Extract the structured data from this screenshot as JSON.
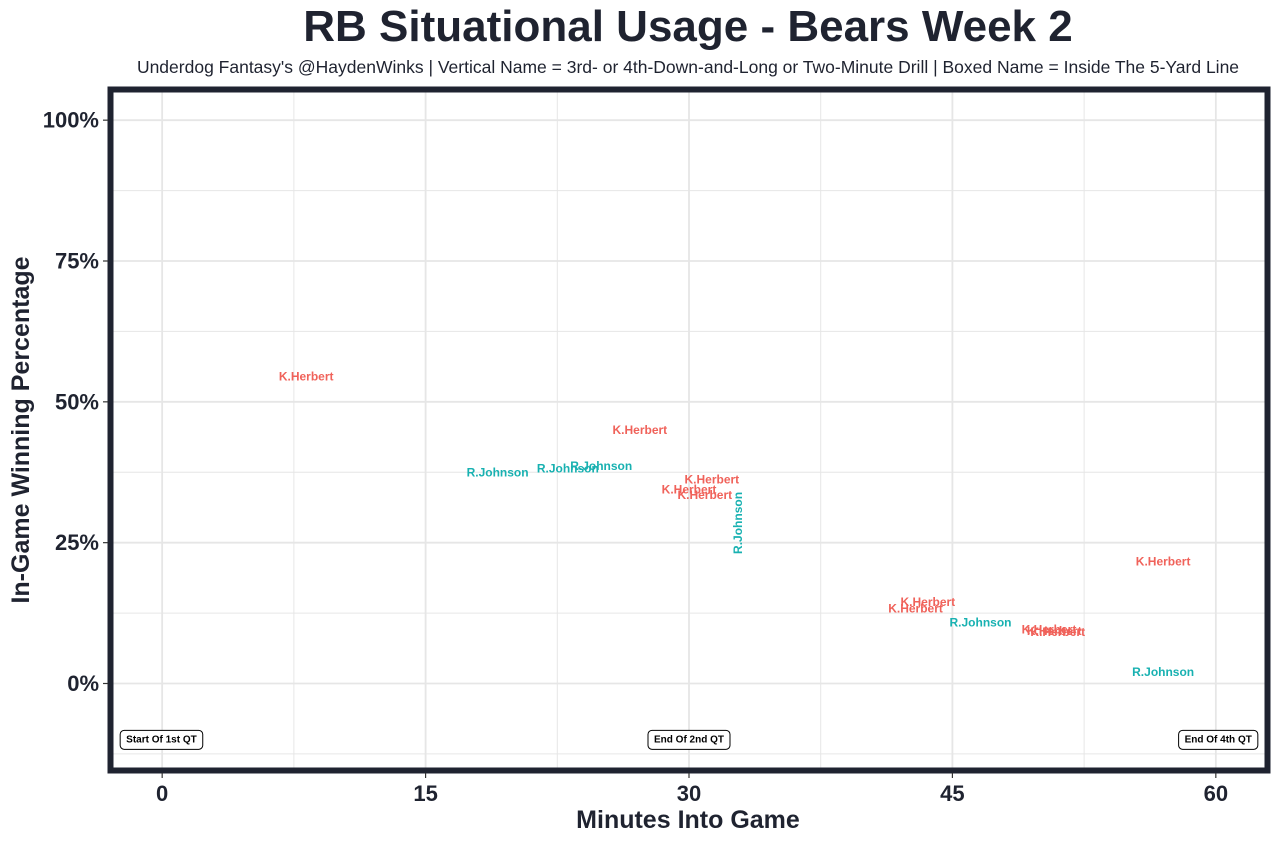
{
  "chart_data": {
    "type": "scatter",
    "title": "RB Situational Usage - Bears Week 2",
    "subtitle": "Underdog Fantasy's @HaydenWinks | Vertical Name = 3rd- or 4th-Down-and-Long or Two-Minute Drill | Boxed Name = Inside The 5-Yard Line",
    "xlabel": "Minutes Into Game",
    "ylabel": "In-Game Winning Percentage",
    "xlim": [
      -2.8,
      62.8
    ],
    "ylim": [
      -15,
      105
    ],
    "x_ticks": [
      0,
      15,
      30,
      45,
      60
    ],
    "x_tick_labels": [
      "0",
      "15",
      "30",
      "45",
      "60"
    ],
    "y_ticks": [
      0,
      25,
      50,
      75,
      100
    ],
    "y_tick_labels": [
      "0%",
      "25%",
      "50%",
      "75%",
      "100%"
    ],
    "grid": true,
    "colors": {
      "K.Herbert": "#f0625a",
      "R.Johnson": "#18b1b1",
      "axis_text": "#1f2330",
      "grid": "#e6e6e6",
      "frame": "#1f2330"
    },
    "points": [
      {
        "player": "K.Herbert",
        "x": 8.2,
        "y": 54.5,
        "vertical": false
      },
      {
        "player": "K.Herbert",
        "x": 27.2,
        "y": 45.0,
        "vertical": false
      },
      {
        "player": "R.Johnson",
        "x": 19.1,
        "y": 37.5,
        "vertical": false
      },
      {
        "player": "R.Johnson",
        "x": 23.1,
        "y": 38.2,
        "vertical": false
      },
      {
        "player": "R.Johnson",
        "x": 25.0,
        "y": 38.6,
        "vertical": false
      },
      {
        "player": "K.Herbert",
        "x": 31.3,
        "y": 36.2,
        "vertical": false
      },
      {
        "player": "K.Herbert",
        "x": 30.0,
        "y": 34.4,
        "vertical": false
      },
      {
        "player": "K.Herbert",
        "x": 30.9,
        "y": 33.5,
        "vertical": false
      },
      {
        "player": "R.Johnson",
        "x": 32.8,
        "y": 28.5,
        "vertical": true
      },
      {
        "player": "K.Herbert",
        "x": 57.0,
        "y": 21.7,
        "vertical": false
      },
      {
        "player": "K.Herbert",
        "x": 43.6,
        "y": 14.5,
        "vertical": false
      },
      {
        "player": "K.Herbert",
        "x": 42.9,
        "y": 13.3,
        "vertical": false
      },
      {
        "player": "R.Johnson",
        "x": 46.6,
        "y": 10.8,
        "vertical": false
      },
      {
        "player": "K.Herbert",
        "x": 50.5,
        "y": 9.6,
        "vertical": false
      },
      {
        "player": "K.Herbert",
        "x": 50.8,
        "y": 9.3,
        "vertical": false
      },
      {
        "player": "K.Herbert",
        "x": 51.0,
        "y": 9.1,
        "vertical": false
      },
      {
        "player": "R.Johnson",
        "x": 57.0,
        "y": 2.0,
        "vertical": false
      }
    ],
    "annotations": [
      {
        "text": "Start Of 1st QT",
        "x": 0,
        "y": -10,
        "anchor": "start"
      },
      {
        "text": "End Of 2nd QT",
        "x": 30,
        "y": -10,
        "anchor": "middle"
      },
      {
        "text": "End Of 4th QT",
        "x": 60,
        "y": -10,
        "anchor": "end"
      }
    ]
  }
}
